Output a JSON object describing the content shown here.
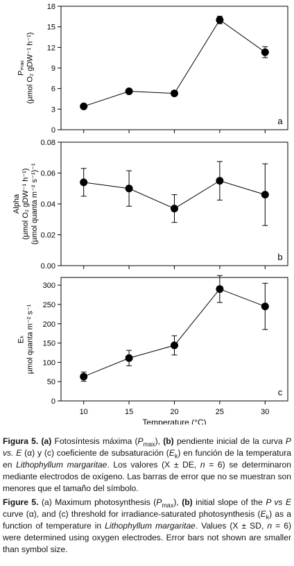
{
  "chart_data": [
    {
      "type": "line",
      "panel_letter": "a",
      "ylabel_lines": [
        "Pₘₐₓ",
        "(µmol O₂ gDW⁻¹ h⁻¹)"
      ],
      "yticks": [
        "0",
        "3",
        "6",
        "9",
        "12",
        "15",
        "18"
      ],
      "ylim": [
        0,
        18
      ],
      "x": [
        10,
        15,
        20,
        25,
        30
      ],
      "values": [
        3.4,
        5.6,
        5.3,
        16.0,
        11.3
      ],
      "errors": [
        0.25,
        0.3,
        0.3,
        0.55,
        0.8
      ]
    },
    {
      "type": "line",
      "panel_letter": "b",
      "ylabel_lines": [
        "Alpha",
        "(µmol O₂ gDW⁻¹ h⁻¹)",
        "(µmol quanta m⁻² s⁻¹)⁻¹"
      ],
      "yticks": [
        "0.00",
        "0.02",
        "0.04",
        "0.06",
        "0.08"
      ],
      "ylim": [
        0,
        0.08
      ],
      "x": [
        10,
        15,
        20,
        25,
        30
      ],
      "values": [
        0.054,
        0.05,
        0.037,
        0.055,
        0.046
      ],
      "errors": [
        0.009,
        0.0115,
        0.009,
        0.0125,
        0.02
      ]
    },
    {
      "type": "line",
      "panel_letter": "c",
      "ylabel_lines": [
        "Eₖ",
        "µmol quanta m⁻² s⁻¹"
      ],
      "yticks": [
        "0",
        "50",
        "100",
        "150",
        "200",
        "250",
        "300"
      ],
      "ylim": [
        0,
        320
      ],
      "x": [
        10,
        15,
        20,
        25,
        30
      ],
      "xticks": [
        "10",
        "15",
        "20",
        "25",
        "30"
      ],
      "xlabel": "Temperature (°C)",
      "values": [
        63,
        111,
        144,
        290,
        245
      ],
      "errors": [
        12,
        20,
        25,
        35,
        60
      ]
    }
  ],
  "caption_es": {
    "label": "Figura 5.",
    "a_marker": "(a)",
    "a_text": " Fotosíntesis máxima (",
    "p_symbol": "P",
    "max_sub": "max",
    "mid1": "), ",
    "b_marker": "(b)",
    "b_text": " pendiente inicial de la curva ",
    "pve": "P vs. E",
    "alpha_text": " (α) y (c) coeficiente de subsaturación (",
    "ek_symbol": "E",
    "ek_sub": "k",
    "rest1": ") en función de la temperatura en ",
    "species": "Lithophyllum margaritae",
    "rest2": ". Los valores (X ± DE, ",
    "n_symbol": "n",
    "rest3": " = 6) se determinaron mediante electrodos de oxígeno. Las barras de error que no se muestran son menores que el tamaño del símbolo."
  },
  "caption_en": {
    "label": "Figure 5.",
    "a_text": " (a) Maximum photosynthesis (",
    "p_symbol": "P",
    "max_sub": "max",
    "mid1": "), ",
    "b_marker": "(b)",
    "b_text": " initial slope of the ",
    "pve": "P vs E",
    "curve_text": " curve (α), and (c) threshold for irradiance-saturated photosynthesis (",
    "ek_symbol": "E",
    "ek_sub": "k",
    "rest1": ") as a function of temperature in ",
    "species": "Lithophyllum margaritae",
    "rest2": ". Values (X ± SD, ",
    "n_symbol": "n",
    "rest3": " = 6) were determined using oxygen electrodes. Error bars not shown are smaller than symbol size."
  }
}
